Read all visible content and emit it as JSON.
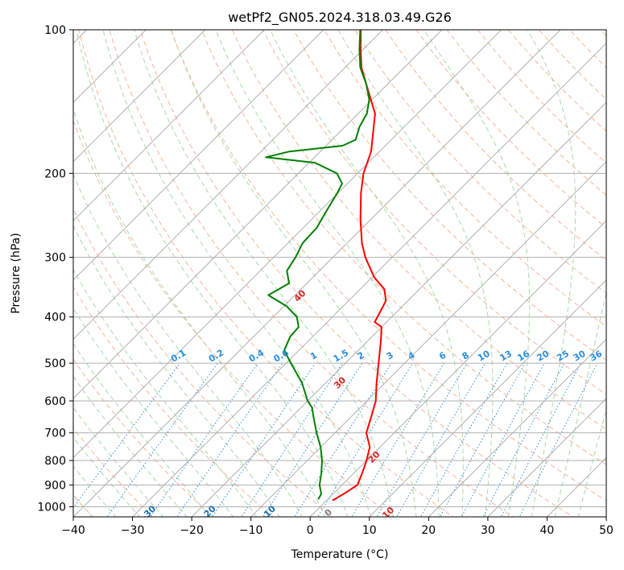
{
  "chart_data": {
    "type": "line",
    "title": "wetPf2_GN05.2024.318.03.49.G26",
    "xlabel": "Temperature (°C)",
    "ylabel": "Pressure (hPa)",
    "xlim": [
      -40,
      50
    ],
    "ylim": [
      1050,
      100
    ],
    "y_scale": "log",
    "skew_deg": 45,
    "x_ticks": [
      -40,
      -30,
      -20,
      -10,
      0,
      10,
      20,
      30,
      40,
      50
    ],
    "x_tick_labels": [
      "−40",
      "−30",
      "−20",
      "−10",
      "0",
      "10",
      "20",
      "30",
      "40",
      "50"
    ],
    "y_ticks": [
      100,
      200,
      300,
      400,
      500,
      600,
      700,
      800,
      900,
      1000
    ],
    "y_tick_labels": [
      "100",
      "200",
      "300",
      "400",
      "500",
      "600",
      "700",
      "800",
      "900",
      "1000"
    ],
    "grid": true,
    "series": [
      {
        "role": "temperature",
        "color": "#ff0000",
        "points": [
          [
            970,
            1.0
          ],
          [
            940,
            1.8
          ],
          [
            900,
            2.6
          ],
          [
            850,
            1.4
          ],
          [
            800,
            0.0
          ],
          [
            750,
            -1.7
          ],
          [
            700,
            -4.7
          ],
          [
            650,
            -6.5
          ],
          [
            600,
            -8.5
          ],
          [
            550,
            -11.4
          ],
          [
            500,
            -14.4
          ],
          [
            450,
            -17.7
          ],
          [
            420,
            -20.0
          ],
          [
            410,
            -22.0
          ],
          [
            390,
            -22.8
          ],
          [
            370,
            -23.7
          ],
          [
            350,
            -25.9
          ],
          [
            330,
            -29.7
          ],
          [
            300,
            -34.5
          ],
          [
            280,
            -37.5
          ],
          [
            250,
            -41.7
          ],
          [
            220,
            -46.1
          ],
          [
            200,
            -49.0
          ],
          [
            180,
            -51.4
          ],
          [
            150,
            -57.1
          ],
          [
            130,
            -63.6
          ],
          [
            120,
            -67.2
          ],
          [
            110,
            -70.4
          ],
          [
            100,
            -73.7
          ]
        ]
      },
      {
        "role": "dewpoint",
        "color": "#008000",
        "points": [
          [
            965,
            -1.6
          ],
          [
            940,
            -2.0
          ],
          [
            900,
            -3.8
          ],
          [
            850,
            -5.5
          ],
          [
            800,
            -7.5
          ],
          [
            750,
            -10.0
          ],
          [
            700,
            -13.1
          ],
          [
            650,
            -16.2
          ],
          [
            620,
            -18.1
          ],
          [
            600,
            -20.0
          ],
          [
            550,
            -24.0
          ],
          [
            500,
            -29.2
          ],
          [
            470,
            -32.5
          ],
          [
            440,
            -33.8
          ],
          [
            420,
            -34.0
          ],
          [
            400,
            -36.0
          ],
          [
            380,
            -39.5
          ],
          [
            360,
            -44.5
          ],
          [
            340,
            -43.0
          ],
          [
            320,
            -45.5
          ],
          [
            300,
            -46.3
          ],
          [
            280,
            -47.5
          ],
          [
            260,
            -47.7
          ],
          [
            240,
            -48.9
          ],
          [
            220,
            -50.1
          ],
          [
            210,
            -50.9
          ],
          [
            200,
            -53.5
          ],
          [
            190,
            -59.0
          ],
          [
            185,
            -68.2
          ],
          [
            180,
            -65.2
          ],
          [
            175,
            -57.2
          ],
          [
            170,
            -56.0
          ],
          [
            160,
            -57.5
          ],
          [
            150,
            -58.5
          ],
          [
            140,
            -60.5
          ],
          [
            130,
            -63.6
          ],
          [
            120,
            -67.4
          ],
          [
            110,
            -70.6
          ],
          [
            100,
            -73.8
          ]
        ]
      }
    ],
    "dry_adiabats": [
      -100,
      -90,
      -80,
      -70,
      -60,
      -50,
      -40,
      -30,
      -20,
      -10,
      0,
      10,
      20,
      30,
      40
    ],
    "moist_adiabats": [
      -30,
      -20,
      -10,
      0,
      10,
      20,
      30,
      40
    ],
    "mixing_ratios": [
      "0.1",
      "0.2",
      "0.4",
      "0.6",
      "1",
      "1.5",
      "2",
      "3",
      "4",
      "6",
      "8",
      "10",
      "13",
      "16",
      "20",
      "25",
      "30",
      "36"
    ],
    "colors": {
      "temperature": "#ff0000",
      "dewpoint": "#008000",
      "isotherm": "#b0b0b0",
      "isobar": "#b0b0b0",
      "dry_adiabat": "#f6b59a",
      "moist_adiabat": "#a9d9a9",
      "mixing_ratio": "#2b8fe0",
      "adiabat_label_cold": "#1f6fb0",
      "adiabat_label_warm": "#d62728",
      "adiabat_label_zero": "#808080"
    }
  }
}
